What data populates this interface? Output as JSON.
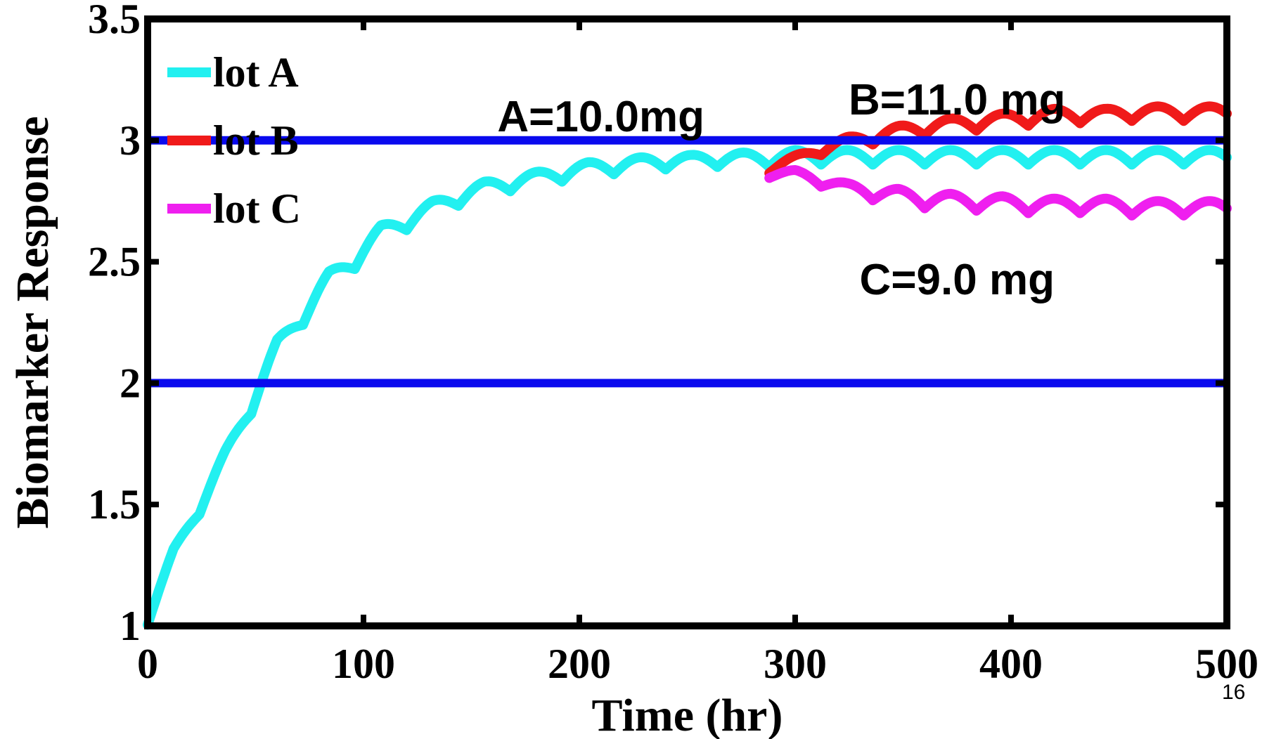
{
  "chart_data": {
    "type": "line",
    "title": "",
    "xlabel": "Time (hr)",
    "ylabel": "Biomarker Response",
    "xlim": [
      0,
      500
    ],
    "ylim": [
      1,
      3.5
    ],
    "xticks": [
      0,
      100,
      200,
      300,
      400,
      500
    ],
    "xtick_labels": [
      "0",
      "100",
      "200",
      "300",
      "400",
      "500"
    ],
    "yticks": [
      1,
      1.5,
      2,
      2.5,
      3,
      3.5
    ],
    "ytick_labels": [
      "1",
      "1.5",
      "2",
      "2.5",
      "3",
      "3.5"
    ],
    "grid": false,
    "legend_position": "top-left",
    "reference_lines": [
      {
        "y": 3.0,
        "color": "#0a0aee"
      },
      {
        "y": 2.0,
        "color": "#0a0aee"
      }
    ],
    "series": [
      {
        "name": "lot A",
        "color": "#22f0f0",
        "x": [
          0,
          12,
          24,
          36,
          48,
          60,
          72,
          84,
          96,
          108,
          120,
          132,
          144,
          156,
          168,
          180,
          192,
          204,
          216,
          228,
          240,
          252,
          264,
          276,
          288,
          300,
          312,
          324,
          336,
          348,
          360,
          372,
          384,
          396,
          408,
          420,
          432,
          444,
          456,
          468,
          480,
          492,
          500
        ],
        "y": [
          1.02,
          1.3,
          1.48,
          1.7,
          1.9,
          2.15,
          2.27,
          2.43,
          2.5,
          2.62,
          2.66,
          2.72,
          2.76,
          2.8,
          2.82,
          2.84,
          2.86,
          2.88,
          2.89,
          2.9,
          2.91,
          2.91,
          2.92,
          2.92,
          2.92,
          2.93,
          2.93,
          2.93,
          2.93,
          2.93,
          2.93,
          2.93,
          2.93,
          2.93,
          2.93,
          2.93,
          2.93,
          2.93,
          2.93,
          2.93,
          2.93,
          2.93,
          2.93
        ]
      },
      {
        "name": "lot B",
        "color": "#f01a1a",
        "x": [
          288,
          300,
          312,
          324,
          336,
          348,
          360,
          372,
          384,
          396,
          408,
          420,
          432,
          444,
          456,
          468,
          480,
          492,
          500
        ],
        "y": [
          2.88,
          2.92,
          2.96,
          2.99,
          3.01,
          3.03,
          3.05,
          3.06,
          3.07,
          3.08,
          3.09,
          3.1,
          3.1,
          3.1,
          3.11,
          3.11,
          3.11,
          3.11,
          3.11
        ]
      },
      {
        "name": "lot C",
        "color": "#ef1fef",
        "x": [
          288,
          300,
          312,
          324,
          336,
          348,
          360,
          372,
          384,
          396,
          408,
          420,
          432,
          444,
          456,
          468,
          480,
          492,
          500
        ],
        "y": [
          2.86,
          2.86,
          2.83,
          2.8,
          2.78,
          2.77,
          2.75,
          2.75,
          2.74,
          2.74,
          2.73,
          2.73,
          2.73,
          2.73,
          2.72,
          2.72,
          2.72,
          2.72,
          2.72
        ]
      }
    ],
    "annotations": [
      {
        "text": "A=10.0mg",
        "x": 210,
        "y": 3.1
      },
      {
        "text": "B=11.0 mg",
        "x": 375,
        "y": 3.17
      },
      {
        "text": "C=9.0 mg",
        "x": 375,
        "y": 2.43
      }
    ],
    "oscillation": {
      "period_hr": 24,
      "amplitude": 0.06
    }
  },
  "page_number": "16"
}
